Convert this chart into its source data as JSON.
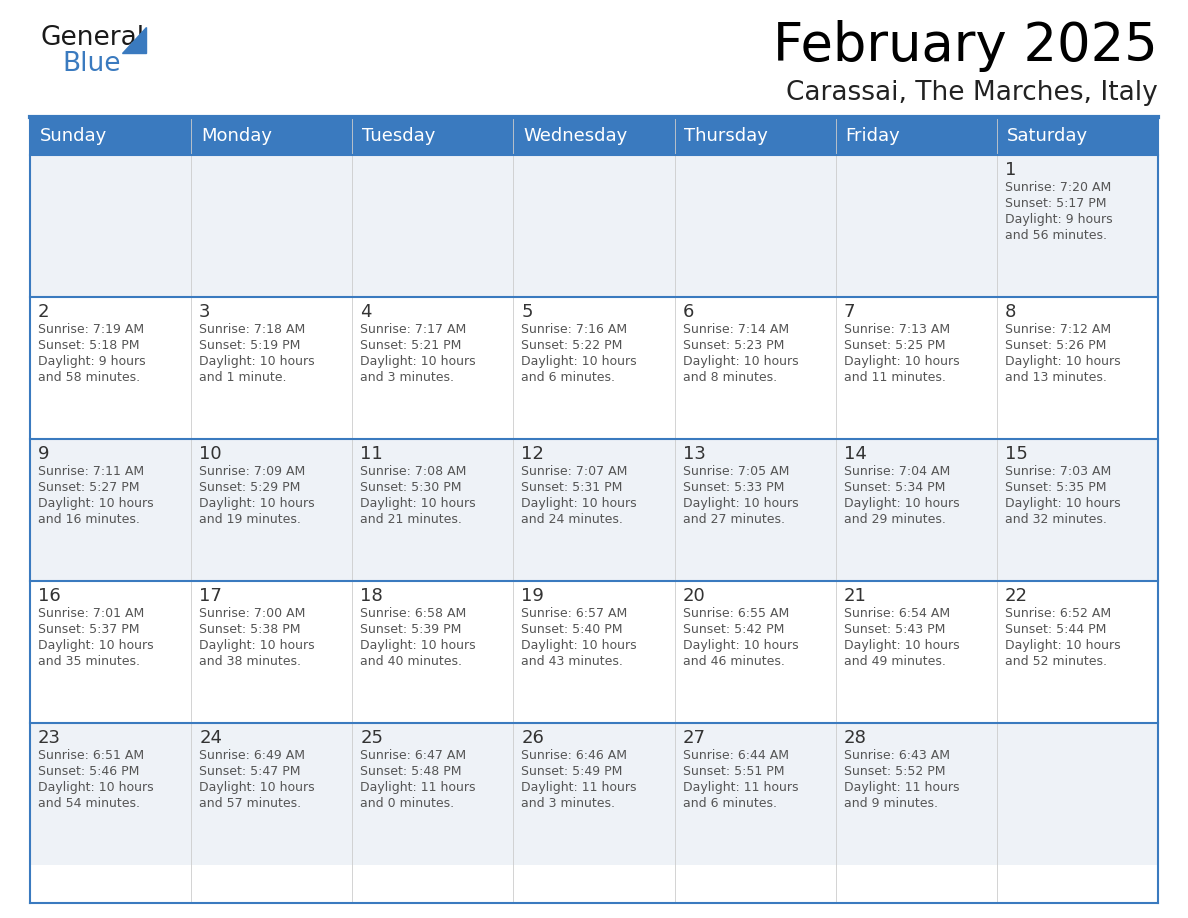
{
  "title": "February 2025",
  "subtitle": "Carassai, The Marches, Italy",
  "header_bg": "#3a7abf",
  "header_text": "#ffffff",
  "row_bg_odd": "#eef2f7",
  "row_bg_even": "#ffffff",
  "separator_color": "#3a7abf",
  "cell_border_color": "#3a7abf",
  "text_color": "#333333",
  "day_headers": [
    "Sunday",
    "Monday",
    "Tuesday",
    "Wednesday",
    "Thursday",
    "Friday",
    "Saturday"
  ],
  "calendar_data": [
    [
      null,
      null,
      null,
      null,
      null,
      null,
      {
        "day": "1",
        "sunrise": "7:20 AM",
        "sunset": "5:17 PM",
        "daylight": "9 hours",
        "daylight2": "and 56 minutes."
      }
    ],
    [
      {
        "day": "2",
        "sunrise": "7:19 AM",
        "sunset": "5:18 PM",
        "daylight": "9 hours",
        "daylight2": "and 58 minutes."
      },
      {
        "day": "3",
        "sunrise": "7:18 AM",
        "sunset": "5:19 PM",
        "daylight": "10 hours",
        "daylight2": "and 1 minute."
      },
      {
        "day": "4",
        "sunrise": "7:17 AM",
        "sunset": "5:21 PM",
        "daylight": "10 hours",
        "daylight2": "and 3 minutes."
      },
      {
        "day": "5",
        "sunrise": "7:16 AM",
        "sunset": "5:22 PM",
        "daylight": "10 hours",
        "daylight2": "and 6 minutes."
      },
      {
        "day": "6",
        "sunrise": "7:14 AM",
        "sunset": "5:23 PM",
        "daylight": "10 hours",
        "daylight2": "and 8 minutes."
      },
      {
        "day": "7",
        "sunrise": "7:13 AM",
        "sunset": "5:25 PM",
        "daylight": "10 hours",
        "daylight2": "and 11 minutes."
      },
      {
        "day": "8",
        "sunrise": "7:12 AM",
        "sunset": "5:26 PM",
        "daylight": "10 hours",
        "daylight2": "and 13 minutes."
      }
    ],
    [
      {
        "day": "9",
        "sunrise": "7:11 AM",
        "sunset": "5:27 PM",
        "daylight": "10 hours",
        "daylight2": "and 16 minutes."
      },
      {
        "day": "10",
        "sunrise": "7:09 AM",
        "sunset": "5:29 PM",
        "daylight": "10 hours",
        "daylight2": "and 19 minutes."
      },
      {
        "day": "11",
        "sunrise": "7:08 AM",
        "sunset": "5:30 PM",
        "daylight": "10 hours",
        "daylight2": "and 21 minutes."
      },
      {
        "day": "12",
        "sunrise": "7:07 AM",
        "sunset": "5:31 PM",
        "daylight": "10 hours",
        "daylight2": "and 24 minutes."
      },
      {
        "day": "13",
        "sunrise": "7:05 AM",
        "sunset": "5:33 PM",
        "daylight": "10 hours",
        "daylight2": "and 27 minutes."
      },
      {
        "day": "14",
        "sunrise": "7:04 AM",
        "sunset": "5:34 PM",
        "daylight": "10 hours",
        "daylight2": "and 29 minutes."
      },
      {
        "day": "15",
        "sunrise": "7:03 AM",
        "sunset": "5:35 PM",
        "daylight": "10 hours",
        "daylight2": "and 32 minutes."
      }
    ],
    [
      {
        "day": "16",
        "sunrise": "7:01 AM",
        "sunset": "5:37 PM",
        "daylight": "10 hours",
        "daylight2": "and 35 minutes."
      },
      {
        "day": "17",
        "sunrise": "7:00 AM",
        "sunset": "5:38 PM",
        "daylight": "10 hours",
        "daylight2": "and 38 minutes."
      },
      {
        "day": "18",
        "sunrise": "6:58 AM",
        "sunset": "5:39 PM",
        "daylight": "10 hours",
        "daylight2": "and 40 minutes."
      },
      {
        "day": "19",
        "sunrise": "6:57 AM",
        "sunset": "5:40 PM",
        "daylight": "10 hours",
        "daylight2": "and 43 minutes."
      },
      {
        "day": "20",
        "sunrise": "6:55 AM",
        "sunset": "5:42 PM",
        "daylight": "10 hours",
        "daylight2": "and 46 minutes."
      },
      {
        "day": "21",
        "sunrise": "6:54 AM",
        "sunset": "5:43 PM",
        "daylight": "10 hours",
        "daylight2": "and 49 minutes."
      },
      {
        "day": "22",
        "sunrise": "6:52 AM",
        "sunset": "5:44 PM",
        "daylight": "10 hours",
        "daylight2": "and 52 minutes."
      }
    ],
    [
      {
        "day": "23",
        "sunrise": "6:51 AM",
        "sunset": "5:46 PM",
        "daylight": "10 hours",
        "daylight2": "and 54 minutes."
      },
      {
        "day": "24",
        "sunrise": "6:49 AM",
        "sunset": "5:47 PM",
        "daylight": "10 hours",
        "daylight2": "and 57 minutes."
      },
      {
        "day": "25",
        "sunrise": "6:47 AM",
        "sunset": "5:48 PM",
        "daylight": "11 hours",
        "daylight2": "and 0 minutes."
      },
      {
        "day": "26",
        "sunrise": "6:46 AM",
        "sunset": "5:49 PM",
        "daylight": "11 hours",
        "daylight2": "and 3 minutes."
      },
      {
        "day": "27",
        "sunrise": "6:44 AM",
        "sunset": "5:51 PM",
        "daylight": "11 hours",
        "daylight2": "and 6 minutes."
      },
      {
        "day": "28",
        "sunrise": "6:43 AM",
        "sunset": "5:52 PM",
        "daylight": "11 hours",
        "daylight2": "and 9 minutes."
      },
      null
    ]
  ],
  "title_fontsize": 38,
  "subtitle_fontsize": 19,
  "header_fontsize": 13,
  "day_num_fontsize": 13,
  "cell_text_fontsize": 9,
  "logo_general_fontsize": 19,
  "logo_blue_fontsize": 19
}
